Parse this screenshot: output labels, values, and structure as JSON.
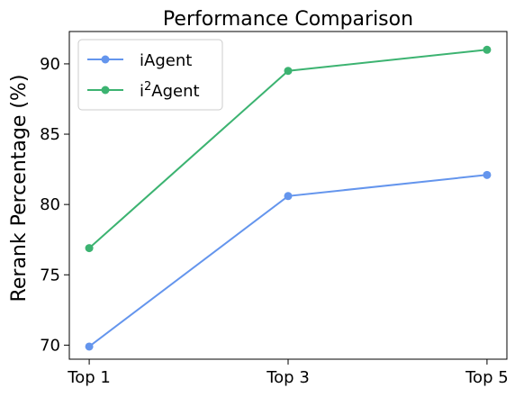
{
  "chart_data": {
    "type": "line",
    "title": "Performance Comparison",
    "xlabel": "",
    "ylabel": "Rerank Percentage (%)",
    "categories": [
      "Top 1",
      "Top 3",
      "Top 5"
    ],
    "ylim": [
      69,
      92.3
    ],
    "yticks": [
      70,
      75,
      80,
      85,
      90
    ],
    "grid": false,
    "legend_position": "top-left",
    "series": [
      {
        "name": "iAgent",
        "legend_base": "iAgent",
        "legend_sup": "",
        "legend_suffix": "",
        "color": "#6495ED",
        "values": [
          69.9,
          80.6,
          82.1
        ]
      },
      {
        "name": "i²Agent",
        "legend_base": "i",
        "legend_sup": "2",
        "legend_suffix": "Agent",
        "color": "#3CB371",
        "values": [
          76.9,
          89.5,
          91.0
        ]
      }
    ]
  }
}
